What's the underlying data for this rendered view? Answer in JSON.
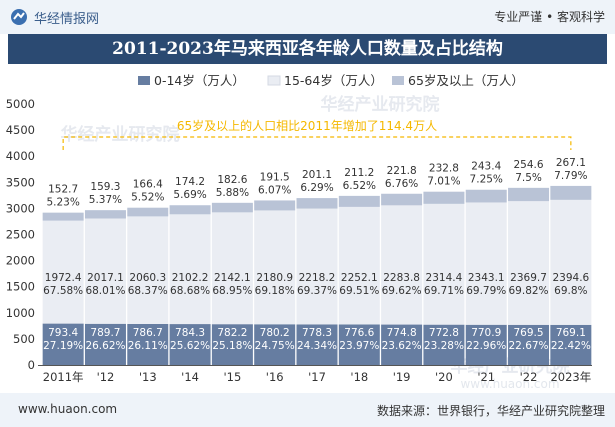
{
  "header": {
    "brand": "华经情报网",
    "slogan": "专业严谨 • 客观科学"
  },
  "title": "2011-2023年马来西亚各年龄人口数量及占比结构",
  "footer": {
    "site": "www.huaon.com",
    "source": "数据来源：世界银行，华经产业研究院整理"
  },
  "watermarks": [
    "华经产业研究院",
    "www.huaon.com"
  ],
  "colors": {
    "s0": "#667da1",
    "s1": "#eaedf3",
    "s2": "#b9c3d6",
    "annotation": "#f5b800",
    "header_bg": "#2b4a72"
  },
  "chart_data": {
    "type": "bar",
    "stacked": true,
    "categories": [
      "2011年",
      "'12",
      "'13",
      "'14",
      "'15",
      "'16",
      "'17",
      "'18",
      "'19",
      "'20",
      "'21",
      "'22",
      "2023年"
    ],
    "series": [
      {
        "name": "0-14岁（万人）",
        "values": [
          793.4,
          789.7,
          786.7,
          784.3,
          782.2,
          780.2,
          778.3,
          776.6,
          774.8,
          772.8,
          770.9,
          769.5,
          769.1
        ],
        "shares": [
          "27.19%",
          "26.62%",
          "26.11%",
          "25.62%",
          "25.18%",
          "24.75%",
          "24.34%",
          "23.97%",
          "23.62%",
          "23.28%",
          "22.96%",
          "22.67%",
          "22.42%"
        ]
      },
      {
        "name": "15-64岁（万人）",
        "values": [
          1972.4,
          2017.1,
          2060.3,
          2102.2,
          2142.1,
          2180.9,
          2218.2,
          2252.1,
          2283.8,
          2314.4,
          2343.1,
          2369.7,
          2394.6
        ],
        "shares": [
          "67.58%",
          "68.01%",
          "68.37%",
          "68.68%",
          "68.95%",
          "69.18%",
          "69.37%",
          "69.51%",
          "69.62%",
          "69.71%",
          "69.79%",
          "69.82%",
          "69.8%"
        ]
      },
      {
        "name": "65岁及以上（万人）",
        "values": [
          152.7,
          159.3,
          166.4,
          174.2,
          182.6,
          191.5,
          201.1,
          211.2,
          221.8,
          232.8,
          243.4,
          254.6,
          267.1
        ],
        "shares": [
          "5.23%",
          "5.37%",
          "5.52%",
          "5.69%",
          "5.88%",
          "6.07%",
          "6.29%",
          "6.52%",
          "6.76%",
          "7.01%",
          "7.25%",
          "7.5%",
          "7.79%"
        ]
      }
    ],
    "ylim": [
      0,
      5000
    ],
    "yticks": [
      0,
      500,
      1000,
      1500,
      2000,
      2500,
      3000,
      3500,
      4000,
      4500,
      5000
    ],
    "annotation": "65岁及以上的人口相比2011年增加了114.4万人",
    "legend_position": "top",
    "grid": false
  }
}
